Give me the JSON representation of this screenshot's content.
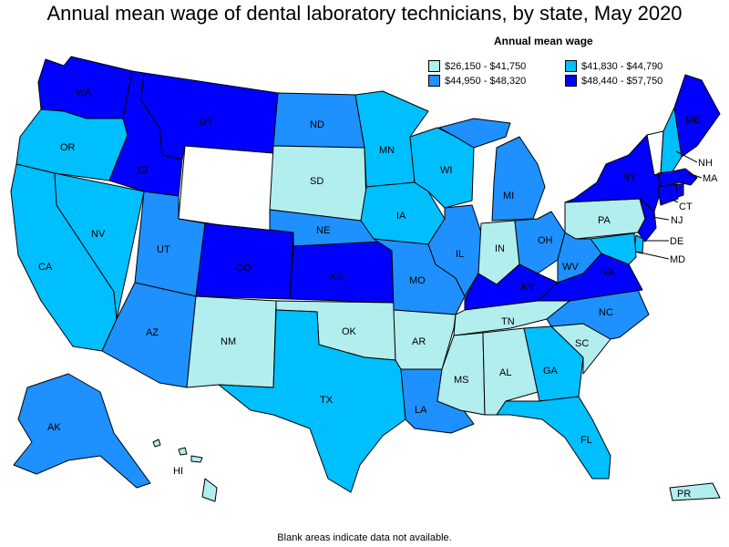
{
  "title": "Annual mean wage of dental laboratory technicians, by state, May 2020",
  "footer": "Blank areas indicate data not available.",
  "legend": {
    "title": "Annual mean wage",
    "items": [
      {
        "range": "$26,150 - $41,750",
        "color": "#b2eeee"
      },
      {
        "range": "$41,830 - $44,790",
        "color": "#00bfff"
      },
      {
        "range": "$44,950 - $48,320",
        "color": "#1e90ff"
      },
      {
        "range": "$48,440 - $57,750",
        "color": "#0000ff"
      }
    ]
  },
  "na_color": "#ffffff",
  "states": {
    "WA": {
      "label": "WA",
      "tier": 3
    },
    "OR": {
      "label": "OR",
      "tier": 1
    },
    "CA": {
      "label": "CA",
      "tier": 1
    },
    "NV": {
      "label": "NV",
      "tier": 1
    },
    "ID": {
      "label": "ID",
      "tier": 3
    },
    "MT": {
      "label": "MT",
      "tier": 3
    },
    "WY": {
      "label": "",
      "tier": -1
    },
    "UT": {
      "label": "UT",
      "tier": 2
    },
    "AZ": {
      "label": "AZ",
      "tier": 2
    },
    "CO": {
      "label": "CO",
      "tier": 3
    },
    "NM": {
      "label": "NM",
      "tier": 0
    },
    "ND": {
      "label": "ND",
      "tier": 2
    },
    "SD": {
      "label": "SD",
      "tier": 0
    },
    "NE": {
      "label": "NE",
      "tier": 2
    },
    "KS": {
      "label": "KS",
      "tier": 3
    },
    "OK": {
      "label": "OK",
      "tier": 0
    },
    "TX": {
      "label": "TX",
      "tier": 1
    },
    "MN": {
      "label": "MN",
      "tier": 1
    },
    "IA": {
      "label": "IA",
      "tier": 1
    },
    "MO": {
      "label": "MO",
      "tier": 2
    },
    "AR": {
      "label": "AR",
      "tier": 0
    },
    "LA": {
      "label": "LA",
      "tier": 2
    },
    "WI": {
      "label": "WI",
      "tier": 1
    },
    "IL": {
      "label": "IL",
      "tier": 2
    },
    "MI": {
      "label": "MI",
      "tier": 2
    },
    "IN": {
      "label": "IN",
      "tier": 0
    },
    "OH": {
      "label": "OH",
      "tier": 2
    },
    "KY": {
      "label": "KY",
      "tier": 3
    },
    "TN": {
      "label": "TN",
      "tier": 0
    },
    "MS": {
      "label": "MS",
      "tier": 0
    },
    "AL": {
      "label": "AL",
      "tier": 0
    },
    "GA": {
      "label": "GA",
      "tier": 1
    },
    "FL": {
      "label": "FL",
      "tier": 1
    },
    "SC": {
      "label": "SC",
      "tier": 0
    },
    "NC": {
      "label": "NC",
      "tier": 2
    },
    "VA": {
      "label": "VA",
      "tier": 3
    },
    "WV": {
      "label": "WV",
      "tier": 2
    },
    "PA": {
      "label": "PA",
      "tier": 0
    },
    "NY": {
      "label": "NY",
      "tier": 3
    },
    "VT": {
      "label": "",
      "tier": -1
    },
    "NH": {
      "label": "NH",
      "tier": 1
    },
    "ME": {
      "label": "ME",
      "tier": 3
    },
    "MA": {
      "label": "MA",
      "tier": 3
    },
    "CT": {
      "label": "CT",
      "tier": 3
    },
    "RI": {
      "label": "",
      "tier": 3
    },
    "NJ": {
      "label": "NJ",
      "tier": 3
    },
    "DE": {
      "label": "DE",
      "tier": 1
    },
    "MD": {
      "label": "MD",
      "tier": 1
    },
    "AK": {
      "label": "AK",
      "tier": 2
    },
    "HI": {
      "label": "HI",
      "tier": 0
    },
    "PR": {
      "label": "PR",
      "tier": 0
    }
  }
}
